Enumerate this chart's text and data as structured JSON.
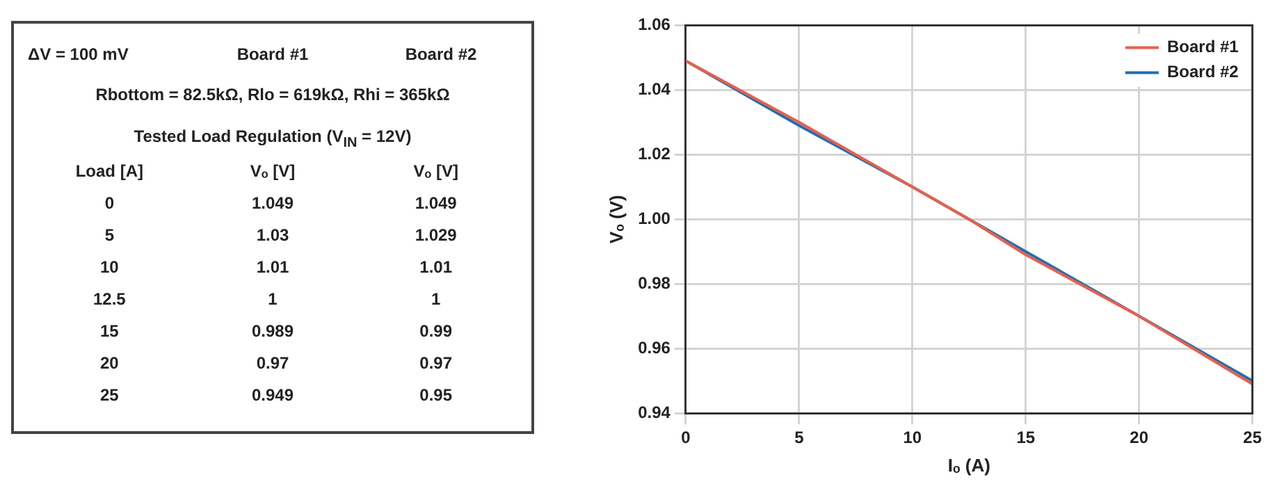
{
  "chart_data": [
    {
      "type": "other",
      "annotations": [
        "ΔV = 100 mV",
        "Rbottom = 82.5kΩ, Rlo = 619kΩ, Rhi = 365kΩ",
        "Tested Load Regulation (V$_{IN}$ = 12V)",
        "Load [A]",
        "Vₒ [V]",
        "Vₒ [V]"
      ],
      "categories": [
        "0",
        "5",
        "10",
        "12.5",
        "15",
        "20",
        "25"
      ],
      "series": [
        {
          "name": "Board #1",
          "values": [
            1.049,
            1.03,
            1.01,
            1,
            0.989,
            0.97,
            0.949
          ],
          "value_labels": [
            "1.049",
            "1.03",
            "1.01",
            "1",
            "0.989",
            "0.97",
            "0.949"
          ]
        },
        {
          "name": "Board #2",
          "values": [
            1.049,
            1.029,
            1.01,
            1,
            0.99,
            0.97,
            0.95
          ],
          "value_labels": [
            "1.049",
            "1.029",
            "1.01",
            "1",
            "0.99",
            "0.97",
            "0.95"
          ]
        }
      ]
    },
    {
      "type": "line",
      "xlabel": "Iₒ (A)",
      "ylabel": "Vₒ (V)",
      "x": [
        0,
        5,
        10,
        12.5,
        15,
        20,
        25
      ],
      "series": [
        {
          "name": "Board #1",
          "color": "#e8604c",
          "values": [
            1.049,
            1.03,
            1.01,
            1,
            0.989,
            0.97,
            0.949
          ]
        },
        {
          "name": "Board #2",
          "color": "#1f6fb2",
          "values": [
            1.049,
            1.029,
            1.01,
            1,
            0.99,
            0.97,
            0.95
          ]
        }
      ],
      "xlim": [
        0,
        25
      ],
      "xticks": [
        0,
        5,
        10,
        15,
        20,
        25
      ],
      "ylim": [
        0.94,
        1.06
      ],
      "yticks": [
        {
          "value": 0.94,
          "label": "0.94"
        },
        {
          "value": 0.96,
          "label": "0.96"
        },
        {
          "value": 0.98,
          "label": "0.98"
        },
        {
          "value": 1.0,
          "label": "1.00"
        },
        {
          "value": 1.02,
          "label": "1.02"
        },
        {
          "value": 1.04,
          "label": "1.04"
        },
        {
          "value": 1.06,
          "label": "1.06"
        }
      ],
      "grid": true,
      "legend": "top right",
      "marker": "none",
      "line_style": "solid"
    }
  ]
}
